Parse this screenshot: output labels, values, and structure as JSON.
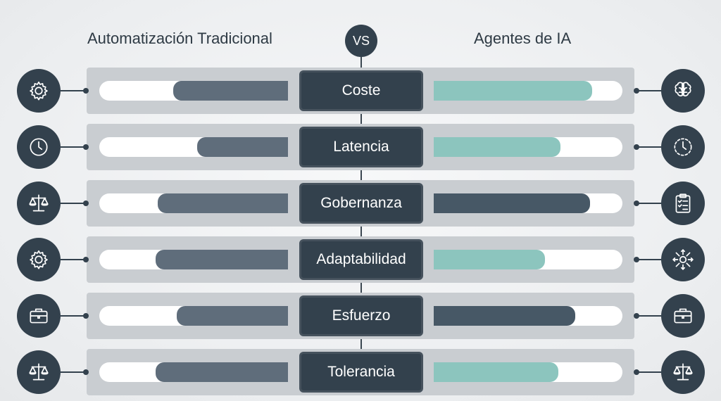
{
  "header": {
    "left_title": "Automatización Tradicional",
    "vs": "VS",
    "right_title": "Agentes de IA"
  },
  "colors": {
    "dark": "#33414d",
    "left_fill": "#5f6d7b",
    "teal": "#8cc5be",
    "slate": "#475866"
  },
  "rows": [
    {
      "label": "Coste",
      "left_value": 0.61,
      "right_value": 0.84,
      "right_color": "teal",
      "left_icon": "gear-icon",
      "right_icon": "brain-icon"
    },
    {
      "label": "Latencia",
      "left_value": 0.48,
      "right_value": 0.67,
      "right_color": "teal",
      "left_icon": "clock-icon",
      "right_icon": "clock-dashed-icon"
    },
    {
      "label": "Gobernanza",
      "left_value": 0.69,
      "right_value": 0.83,
      "right_color": "slate",
      "left_icon": "scales-icon",
      "right_icon": "clipboard-checklist-icon"
    },
    {
      "label": "Adaptabilidad",
      "left_value": 0.7,
      "right_value": 0.59,
      "right_color": "teal",
      "left_icon": "gear-icon",
      "right_icon": "network-arrows-icon"
    },
    {
      "label": "Esfuerzo",
      "left_value": 0.59,
      "right_value": 0.75,
      "right_color": "slate",
      "left_icon": "briefcase-icon",
      "right_icon": "briefcase-icon"
    },
    {
      "label": "Tolerancia",
      "left_value": 0.7,
      "right_value": 0.66,
      "right_color": "teal",
      "left_icon": "scales-icon",
      "right_icon": "scales-icon"
    }
  ]
}
